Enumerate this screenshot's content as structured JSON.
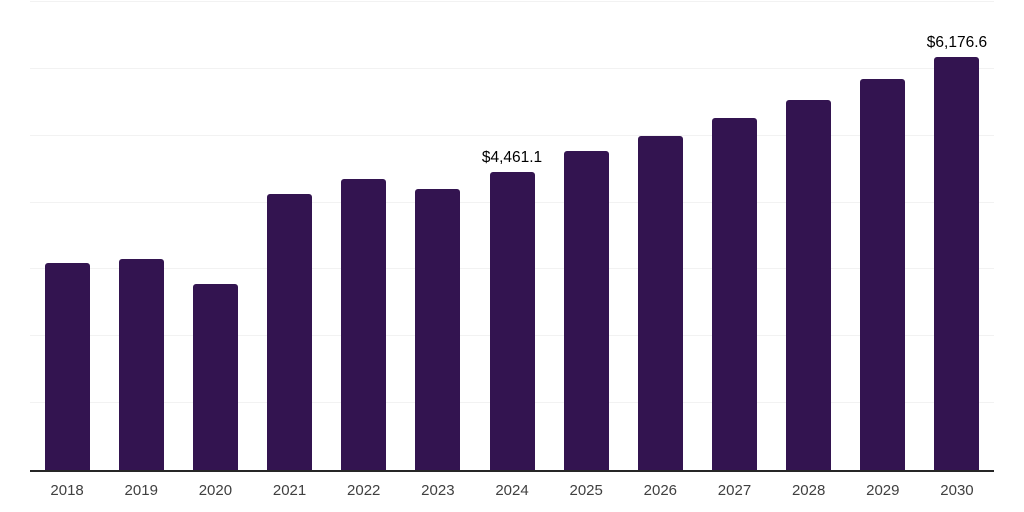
{
  "chart_data": {
    "type": "bar",
    "title": "",
    "xlabel": "",
    "ylabel": "",
    "categories": [
      "2018",
      "2019",
      "2020",
      "2021",
      "2022",
      "2023",
      "2024",
      "2025",
      "2026",
      "2027",
      "2028",
      "2029",
      "2030"
    ],
    "values": [
      3090,
      3160,
      2775,
      4135,
      4360,
      4200,
      4461.1,
      4765,
      4990,
      5270,
      5540,
      5850,
      6176.6
    ],
    "ylim": [
      0,
      7000
    ],
    "grid_step": 1000,
    "grid": true,
    "legend_position": "none",
    "data_labels": [
      {
        "category": "2024",
        "text": "$4,461.1"
      },
      {
        "category": "2030",
        "text": "$6,176.6"
      }
    ],
    "colors": {
      "bar": "#331450",
      "axis_line": "#262626",
      "gridline": "#f2f2f2",
      "tick_label": "#404040",
      "data_label": "#000000",
      "background": "#ffffff"
    }
  }
}
